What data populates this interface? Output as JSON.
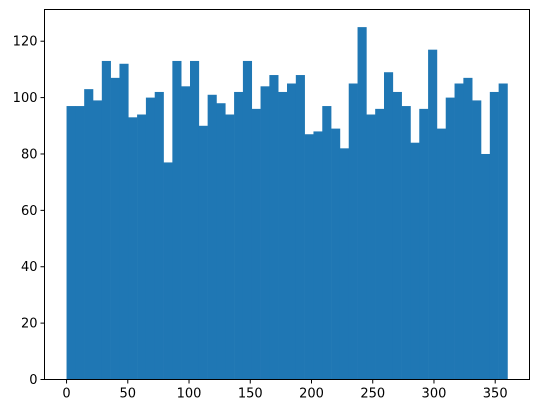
{
  "chart_data": {
    "type": "bar",
    "x": {
      "bin_start": 0,
      "bin_width": 7.2,
      "xlim": [
        -18,
        378
      ],
      "ticks": [
        0,
        50,
        100,
        150,
        200,
        250,
        300,
        350
      ],
      "tick_labels": [
        "0",
        "50",
        "100",
        "150",
        "200",
        "250",
        "300",
        "350"
      ]
    },
    "values": [
      97,
      97,
      103,
      99,
      113,
      107,
      112,
      93,
      94,
      100,
      102,
      77,
      113,
      104,
      113,
      90,
      101,
      98,
      94,
      102,
      113,
      96,
      104,
      108,
      102,
      105,
      108,
      87,
      88,
      97,
      89,
      82,
      105,
      125,
      94,
      96,
      109,
      102,
      97,
      84,
      96,
      117,
      89,
      100,
      105,
      107,
      99,
      80,
      102,
      105
    ],
    "ylim": [
      0,
      131.25
    ],
    "y_ticks": [
      0,
      20,
      40,
      60,
      80,
      100,
      120
    ],
    "y_tick_labels": [
      "0",
      "20",
      "40",
      "60",
      "80",
      "100",
      "120"
    ],
    "title": "",
    "xlabel": "",
    "ylabel": "",
    "bar_color": "#1f77b4",
    "grid": false,
    "legend": "none"
  }
}
